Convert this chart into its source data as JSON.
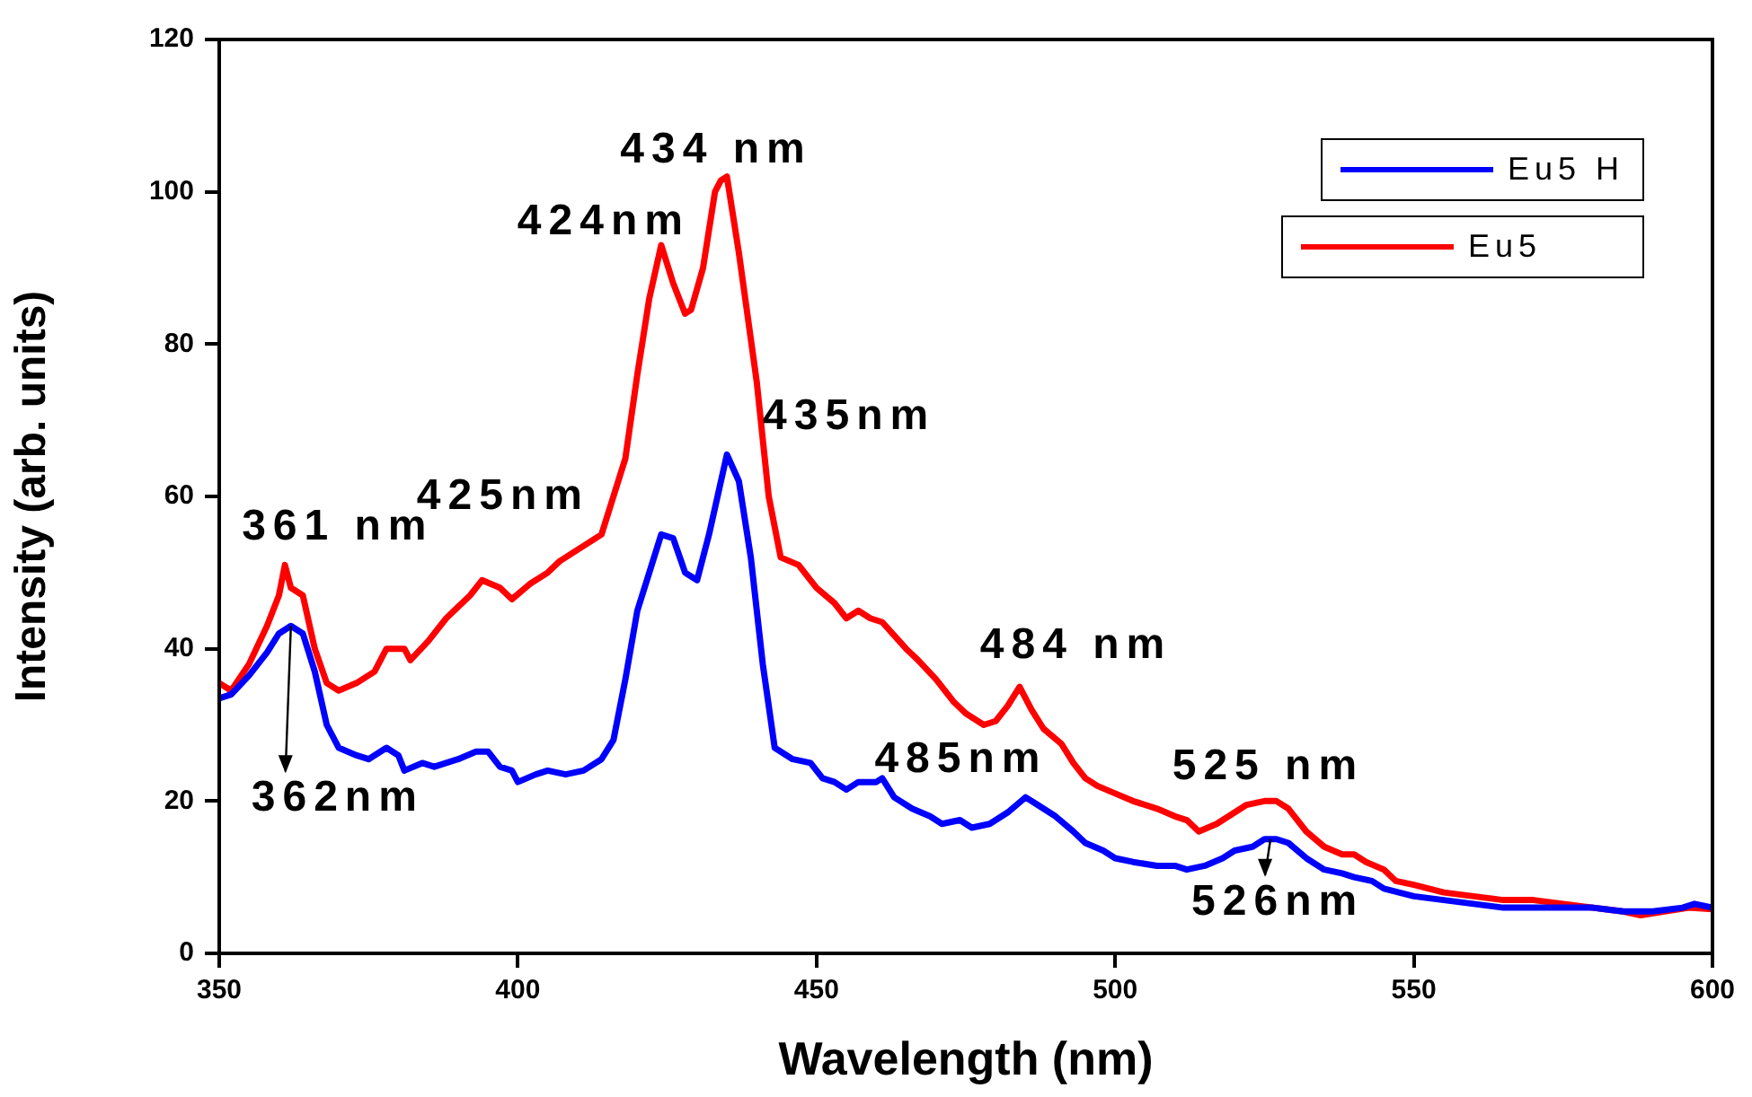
{
  "chart_data": {
    "type": "line",
    "xlabel": "Wavelength (nm)",
    "ylabel": "Intensity (arb. units)",
    "xlim": [
      350,
      600
    ],
    "xticks": [
      350,
      400,
      450,
      500,
      550,
      600
    ],
    "ylim": [
      0,
      120
    ],
    "yticks": [
      0,
      20,
      40,
      60,
      80,
      100,
      120
    ],
    "grid": false,
    "legend": "top right",
    "marker": "none",
    "line_style": "solid",
    "series": [
      {
        "name": "Eu5 H",
        "color": "#0000ff",
        "x": [
          350,
          352,
          355,
          358,
          360,
          362,
          364,
          366,
          368,
          370,
          373,
          375,
          378,
          380,
          381,
          384,
          386,
          390,
          393,
          395,
          397,
          399,
          400,
          403,
          405,
          408,
          411,
          414,
          416,
          418,
          420,
          422,
          424,
          426,
          428,
          430,
          432,
          434,
          435,
          437,
          439,
          441,
          443,
          446,
          449,
          451,
          453,
          455,
          457,
          460,
          461,
          463,
          466,
          469,
          471,
          474,
          476,
          479,
          482,
          485,
          487,
          490,
          493,
          495,
          498,
          500,
          503,
          507,
          510,
          512,
          515,
          518,
          520,
          523,
          525,
          527,
          529,
          532,
          535,
          538,
          540,
          543,
          545,
          550,
          555,
          560,
          565,
          570,
          580,
          585,
          590,
          595,
          597,
          600
        ],
        "values": [
          33.5,
          34,
          36.5,
          39.5,
          42,
          43,
          42,
          37,
          30,
          27,
          26,
          25.5,
          27,
          26,
          24,
          25,
          24.5,
          25.5,
          26.5,
          26.5,
          24.5,
          24,
          22.5,
          23.5,
          24,
          23.5,
          24,
          25.5,
          28,
          36,
          45,
          50,
          55,
          54.5,
          50,
          49,
          55,
          62,
          65.5,
          62,
          52,
          38,
          27,
          25.5,
          25,
          23,
          22.5,
          21.5,
          22.5,
          22.5,
          23,
          20.5,
          19,
          18,
          17,
          17.5,
          16.5,
          17,
          18.5,
          20.5,
          19.5,
          18,
          16,
          14.5,
          13.5,
          12.5,
          12,
          11.5,
          11.5,
          11,
          11.5,
          12.5,
          13.5,
          14,
          15,
          15,
          14.5,
          12.5,
          11,
          10.5,
          10,
          9.5,
          8.5,
          7.5,
          7,
          6.5,
          6,
          6,
          6,
          5.5,
          5.5,
          6,
          6.5,
          6
        ]
      },
      {
        "name": "Eu5",
        "color": "#ff0000",
        "x": [
          350,
          352,
          355,
          358,
          360,
          361,
          362,
          364,
          366,
          368,
          370,
          373,
          376,
          378,
          381,
          382,
          385,
          388,
          392,
          394,
          397,
          399,
          402,
          405,
          407,
          410,
          414,
          416,
          418,
          420,
          422,
          424,
          426,
          428,
          429,
          431,
          433,
          434,
          435,
          437,
          440,
          442,
          444,
          447,
          450,
          453,
          455,
          457,
          459,
          461,
          465,
          467,
          470,
          473,
          475,
          478,
          480,
          482,
          484,
          486,
          488,
          491,
          493,
          495,
          497,
          500,
          503,
          507,
          510,
          512,
          514,
          517,
          520,
          522,
          525,
          527,
          529,
          532,
          535,
          538,
          540,
          542,
          545,
          547,
          550,
          555,
          560,
          565,
          570,
          575,
          580,
          585,
          588,
          592,
          596,
          600
        ],
        "values": [
          35.5,
          34.5,
          38,
          43,
          47,
          51,
          48,
          47,
          40,
          35.5,
          34.5,
          35.5,
          37,
          40,
          40,
          38.5,
          41,
          44,
          47,
          49,
          48,
          46.5,
          48.5,
          50,
          51.5,
          53,
          55,
          60,
          65,
          76,
          86,
          93,
          88,
          84,
          84.5,
          90,
          100,
          101.5,
          102,
          92,
          75,
          60,
          52,
          51,
          48,
          46,
          44,
          45,
          44,
          43.5,
          40,
          38.5,
          36,
          33,
          31.5,
          30,
          30.5,
          32.5,
          35,
          32,
          29.5,
          27.5,
          25,
          23,
          22,
          21,
          20,
          19,
          18,
          17.5,
          16,
          17,
          18.5,
          19.5,
          20,
          20,
          19,
          16,
          14,
          13,
          13,
          12,
          11,
          9.5,
          9,
          8,
          7.5,
          7,
          7,
          6.5,
          6,
          5.5,
          5,
          5.5,
          6,
          5.8
        ]
      }
    ],
    "annotations": [
      {
        "text": "434 nm",
        "x": 435,
        "y": 102
      },
      {
        "text": "424nm",
        "x": 424,
        "y": 93
      },
      {
        "text": "435nm",
        "x": 435,
        "y": 65.5
      },
      {
        "text": "425nm",
        "x": 424,
        "y": 55
      },
      {
        "text": "361 nm",
        "x": 361,
        "y": 51
      },
      {
        "text": "362nm",
        "x": 362,
        "y": 43
      },
      {
        "text": "484 nm",
        "x": 484,
        "y": 35
      },
      {
        "text": "485nm",
        "x": 485,
        "y": 20.5
      },
      {
        "text": "525 nm",
        "x": 525,
        "y": 20
      },
      {
        "text": "526nm",
        "x": 526,
        "y": 15
      }
    ]
  }
}
